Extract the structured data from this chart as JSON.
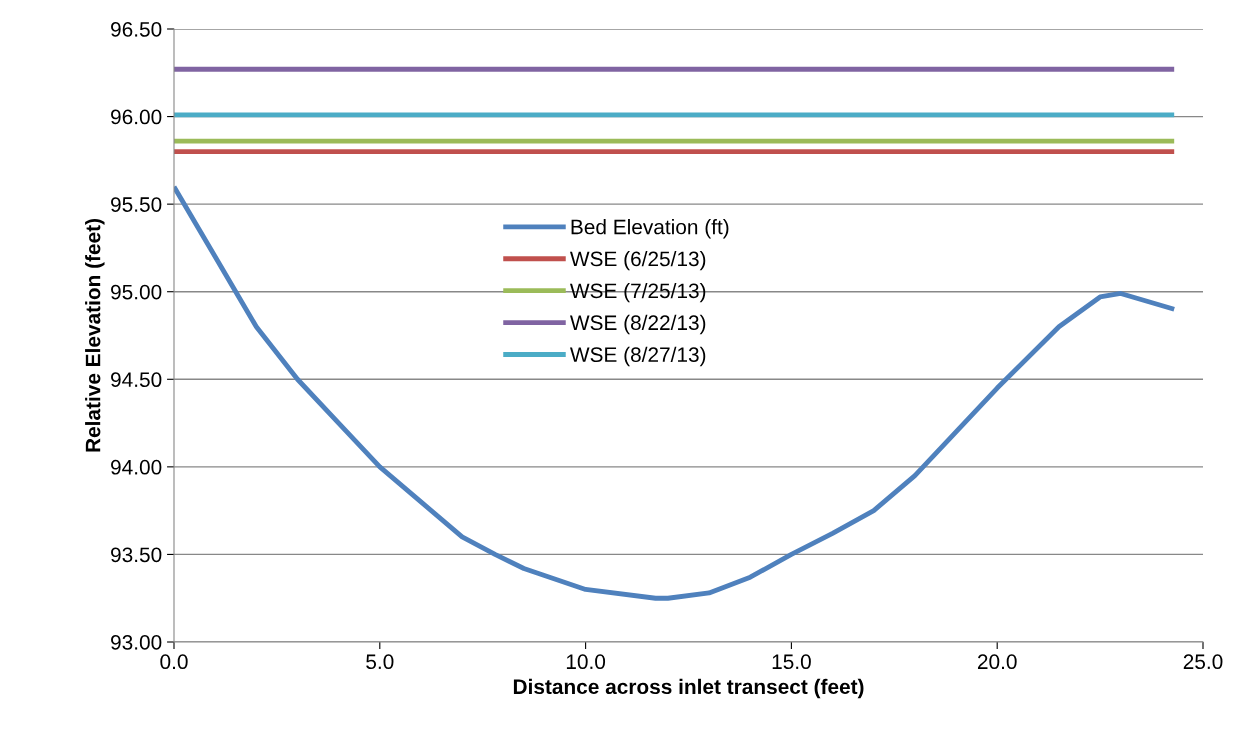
{
  "chart_data": {
    "type": "line",
    "xlabel": "Distance across inlet transect (feet)",
    "ylabel": "Relative Elevation (feet)",
    "xlim": [
      0,
      25
    ],
    "xticks": [
      {
        "value": 0,
        "label": "0.0"
      },
      {
        "value": 5,
        "label": "5.0"
      },
      {
        "value": 10,
        "label": "10.0"
      },
      {
        "value": 15,
        "label": "15.0"
      },
      {
        "value": 20,
        "label": "20.0"
      },
      {
        "value": 25,
        "label": "25.0"
      }
    ],
    "ylim": [
      93,
      96.5
    ],
    "yticks": [
      {
        "value": 93,
        "label": "93.00"
      },
      {
        "value": 93.5,
        "label": "93.50"
      },
      {
        "value": 94,
        "label": "94.00"
      },
      {
        "value": 94.5,
        "label": "94.50"
      },
      {
        "value": 95,
        "label": "95.00"
      },
      {
        "value": 95.5,
        "label": "95.50"
      },
      {
        "value": 96,
        "label": "96.00"
      },
      {
        "value": 96.5,
        "label": "96.50"
      }
    ],
    "grid": "y",
    "legend": "center",
    "marker": "none",
    "line_style": "solid",
    "series": [
      {
        "name": "Bed Elevation (ft)",
        "color": "#4f81bd",
        "x": [
          0,
          0.5,
          1.5,
          2,
          3,
          4,
          5,
          6,
          7,
          7.8,
          8.5,
          10,
          11.7,
          12,
          13,
          14,
          15,
          16,
          17,
          18,
          19,
          20,
          21.5,
          22.5,
          23,
          24.3
        ],
        "values": [
          95.6,
          95.4,
          95.0,
          94.8,
          94.5,
          94.25,
          94.0,
          93.8,
          93.6,
          93.5,
          93.42,
          93.3,
          93.25,
          93.25,
          93.28,
          93.37,
          93.5,
          93.62,
          93.75,
          93.95,
          94.2,
          94.45,
          94.8,
          94.97,
          94.99,
          94.9
        ]
      },
      {
        "name": "WSE (6/25/13)",
        "color": "#c0504d",
        "x": [
          0,
          24.3
        ],
        "values": [
          95.8,
          95.8
        ]
      },
      {
        "name": "WSE (7/25/13)",
        "color": "#9bbb59",
        "x": [
          0,
          24.3
        ],
        "values": [
          95.86,
          95.86
        ]
      },
      {
        "name": "WSE (8/22/13)",
        "color": "#8064a2",
        "x": [
          0,
          24.3
        ],
        "values": [
          96.27,
          96.27
        ]
      },
      {
        "name": "WSE (8/27/13)",
        "color": "#4bacc6",
        "x": [
          0,
          24.3
        ],
        "values": [
          96.01,
          96.01
        ]
      }
    ]
  }
}
